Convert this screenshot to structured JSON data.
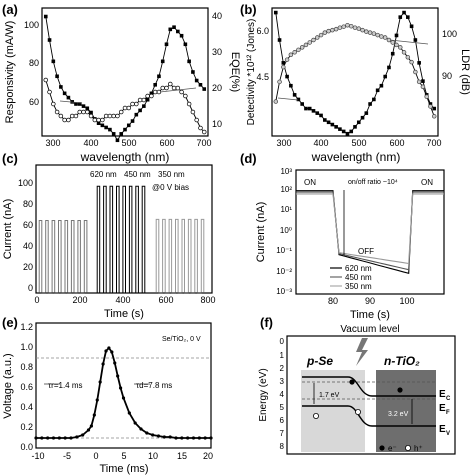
{
  "figure": {
    "panels": [
      {
        "id": "a",
        "label": "(a)",
        "xlabel": "wavelength (nm)",
        "ylabel_left": "Responsivity (mA/W)",
        "ylabel_right": "EQE(%)",
        "xticks": [
          "300",
          "400",
          "500",
          "600",
          "700"
        ],
        "yticks_left": [
          "60",
          "80",
          "100"
        ],
        "yticks_right": [
          "10",
          "20",
          "30",
          "40"
        ]
      },
      {
        "id": "b",
        "label": "(b)",
        "xlabel": "wavelength (nm)",
        "ylabel_left": "Detectivity *10¹² (Jones)",
        "ylabel_right": "LDR (dB)",
        "xticks": [
          "300",
          "400",
          "500",
          "600",
          "700"
        ],
        "yticks_left": [
          "4.5",
          "6.0"
        ],
        "yticks_right": [
          "90",
          "100"
        ]
      },
      {
        "id": "c",
        "label": "(c)",
        "xlabel": "Time (s)",
        "ylabel": "Current (nA)",
        "xticks": [
          "0",
          "200",
          "400",
          "600",
          "800"
        ],
        "yticks": [
          "0",
          "20",
          "40",
          "60",
          "80",
          "100"
        ],
        "legend": [
          "620 nm",
          "450 nm",
          "350 nm"
        ],
        "annotation": "@0 V bias"
      },
      {
        "id": "d",
        "label": "(d)",
        "xlabel": "Time (s)",
        "ylabel": "Current (nA)",
        "xticks": [
          "80",
          "90",
          "100"
        ],
        "yticks": [
          "10⁻³",
          "10⁻²",
          "10⁻¹",
          "10⁰",
          "10¹",
          "10²",
          "10³"
        ],
        "legend": [
          "620 nm",
          "450 nm",
          "350 nm"
        ],
        "annotations": [
          "ON",
          "ON",
          "OFF",
          "on/off ratio ~10⁴"
        ]
      },
      {
        "id": "e",
        "label": "(e)",
        "xlabel": "Time (ms)",
        "ylabel": "Voltage (a.u.)",
        "xticks": [
          "-10",
          "-5",
          "0",
          "5",
          "10",
          "15",
          "20"
        ],
        "yticks": [
          "0.0",
          "0.2",
          "0.4",
          "0.6",
          "0.8",
          "1.0",
          "1.2"
        ],
        "annotations": [
          "Se/TiO₂, 0 V",
          "τr=1.4 ms",
          "τd=7.8 ms"
        ]
      },
      {
        "id": "f",
        "label": "(f)",
        "title": "Vacuum level",
        "ylabel": "Energy (eV)",
        "yticks": [
          "0",
          "1",
          "2",
          "3",
          "4",
          "5",
          "6",
          "7",
          "8"
        ],
        "left_region": "p-Se",
        "right_region": "n-TiO₂",
        "gap_left": "1.7 eV",
        "gap_right": "3.2 eV",
        "levels": [
          "E",
          "C",
          "E",
          "F",
          "E",
          "V"
        ],
        "legend": [
          "e⁻",
          "h⁺"
        ]
      }
    ]
  },
  "chart_data": [
    {
      "type": "line",
      "panel": "a",
      "x": [
        280,
        290,
        300,
        310,
        320,
        330,
        340,
        350,
        360,
        370,
        380,
        390,
        400,
        410,
        420,
        430,
        440,
        450,
        460,
        470,
        480,
        490,
        500,
        510,
        520,
        530,
        540,
        550,
        560,
        570,
        580,
        590,
        600,
        610,
        620,
        630,
        640,
        650,
        660,
        670,
        680,
        690,
        700
      ],
      "series": [
        {
          "axis": "left",
          "values": [
            106,
            95,
            85,
            78,
            73,
            70,
            68,
            66,
            65,
            65,
            64,
            63,
            61,
            58,
            56,
            55,
            54,
            53,
            51,
            48,
            51,
            53,
            55,
            57,
            60,
            62,
            64,
            67,
            70,
            74,
            78,
            85,
            93,
            100,
            101,
            99,
            97,
            93,
            85,
            80,
            76,
            74,
            72
          ]
        },
        {
          "axis": "right",
          "values": [
            24,
            21,
            18,
            16,
            15,
            14,
            14,
            15,
            15,
            16,
            16,
            16,
            15,
            14,
            14,
            14,
            15,
            15,
            15,
            15,
            16,
            17,
            17,
            18,
            18,
            19,
            19,
            20,
            20,
            21,
            21,
            22,
            22,
            23,
            22,
            22,
            21,
            20,
            18,
            16,
            14,
            12,
            11
          ]
        }
      ],
      "xlim": [
        270,
        710
      ],
      "ylim_left": [
        50,
        110
      ],
      "ylim_right": [
        10,
        42
      ]
    },
    {
      "type": "line",
      "panel": "b",
      "x": [
        280,
        290,
        300,
        310,
        320,
        330,
        340,
        350,
        360,
        370,
        380,
        390,
        400,
        410,
        420,
        430,
        440,
        450,
        460,
        470,
        480,
        490,
        500,
        510,
        520,
        530,
        540,
        550,
        560,
        570,
        580,
        590,
        600,
        610,
        620,
        630,
        640,
        650,
        660,
        670,
        680,
        690,
        700
      ],
      "series": [
        {
          "axis": "left",
          "values": [
            6.5,
            5.9,
            5.4,
            5.1,
            4.9,
            4.7,
            4.6,
            4.5,
            4.4,
            4.4,
            4.35,
            4.3,
            4.25,
            4.15,
            4.1,
            4.05,
            4.0,
            3.95,
            3.9,
            3.85,
            3.9,
            4.0,
            4.1,
            4.2,
            4.3,
            4.5,
            4.6,
            4.8,
            4.9,
            5.1,
            5.3,
            5.6,
            6.0,
            6.4,
            6.5,
            6.4,
            6.2,
            5.9,
            5.4,
            5.0,
            4.7,
            4.5,
            4.4
          ]
        },
        {
          "axis": "right",
          "values": [
            87,
            91,
            94,
            95.5,
            96.5,
            97,
            97.5,
            98,
            98.5,
            99,
            99.5,
            100,
            100.5,
            101,
            101.3,
            101.5,
            101.7,
            102,
            102.2,
            102.5,
            102.3,
            102,
            101.8,
            101.5,
            101.2,
            101,
            100.8,
            100.5,
            100.2,
            100,
            99.5,
            99,
            98.5,
            98,
            97,
            96,
            95,
            93,
            91,
            90,
            88,
            86,
            84
          ]
        }
      ],
      "xlim": [
        270,
        710
      ],
      "ylim_left": [
        3.8,
        6.6
      ],
      "ylim_right": [
        80,
        106
      ]
    },
    {
      "type": "line",
      "panel": "c",
      "series": [
        {
          "name": "620 nm",
          "on_current": 68,
          "cycles": [
            [
              15,
              27
            ],
            [
              45,
              57
            ],
            [
              75,
              87
            ],
            [
              105,
              117
            ],
            [
              135,
              147
            ],
            [
              165,
              177
            ],
            [
              195,
              207
            ],
            [
              225,
              237
            ]
          ]
        },
        {
          "name": "450 nm",
          "on_current": 100,
          "cycles": [
            [
              285,
              297
            ],
            [
              315,
              327
            ],
            [
              345,
              357
            ],
            [
              375,
              387
            ],
            [
              405,
              417
            ],
            [
              435,
              447
            ],
            [
              465,
              477
            ],
            [
              495,
              507
            ]
          ]
        },
        {
          "name": "350 nm",
          "on_current": 69,
          "cycles": [
            [
              560,
              572
            ],
            [
              590,
              602
            ],
            [
              620,
              632
            ],
            [
              650,
              662
            ],
            [
              680,
              692
            ],
            [
              710,
              722
            ],
            [
              740,
              752
            ],
            [
              770,
              782
            ]
          ]
        }
      ],
      "xlim": [
        0,
        820
      ],
      "ylim": [
        0,
        120
      ]
    },
    {
      "type": "line",
      "panel": "d",
      "yscale": "log",
      "series": [
        {
          "name": "620 nm",
          "on": 100,
          "off_start": 0.08,
          "off_end": 0.01
        },
        {
          "name": "450 nm",
          "on": 85,
          "off_start": 0.09,
          "off_end": 0.015
        },
        {
          "name": "350 nm",
          "on": 70,
          "off_start": 0.1,
          "off_end": 0.03
        }
      ],
      "off_interval": [
        80,
        101
      ],
      "xlim": [
        70,
        110
      ],
      "ylim": [
        0.001,
        1000
      ]
    },
    {
      "type": "scatter",
      "panel": "e",
      "x": [
        -10,
        -9,
        -8,
        -7,
        -6,
        -5,
        -4,
        -3,
        -2,
        -1,
        -0.5,
        0,
        0.5,
        1,
        1.5,
        2,
        2.5,
        3,
        3.5,
        4,
        4.5,
        5,
        6,
        7,
        8,
        9,
        10,
        11,
        12,
        13,
        14,
        15,
        16,
        17,
        18,
        19,
        20
      ],
      "y": [
        0.1,
        0.1,
        0.1,
        0.1,
        0.1,
        0.1,
        0.1,
        0.11,
        0.13,
        0.18,
        0.22,
        0.33,
        0.48,
        0.66,
        0.84,
        0.97,
        1.0,
        0.96,
        0.85,
        0.72,
        0.6,
        0.5,
        0.35,
        0.25,
        0.19,
        0.15,
        0.13,
        0.12,
        0.11,
        0.11,
        0.1,
        0.1,
        0.1,
        0.1,
        0.1,
        0.1,
        0.1
      ],
      "hlines": [
        0.1,
        0.9
      ],
      "xlim": [
        -10,
        20
      ],
      "ylim": [
        0,
        1.25
      ]
    }
  ]
}
